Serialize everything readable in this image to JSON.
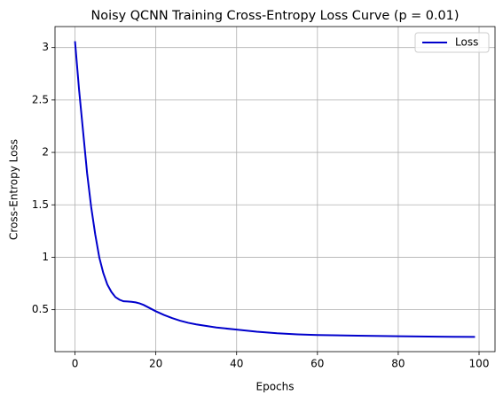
{
  "chart_data": {
    "type": "line",
    "title": "Noisy QCNN Training Cross-Entropy Loss Curve (p = 0.01)",
    "xlabel": "Epochs",
    "ylabel": "Cross-Entropy Loss",
    "x": [
      0,
      1,
      2,
      3,
      4,
      5,
      6,
      7,
      8,
      9,
      10,
      11,
      12,
      13,
      14,
      15,
      16,
      17,
      18,
      19,
      20,
      22,
      24,
      26,
      28,
      30,
      35,
      40,
      45,
      50,
      55,
      60,
      70,
      80,
      90,
      99
    ],
    "series": [
      {
        "name": "Loss",
        "color": "#0000cc",
        "values": [
          3.06,
          2.6,
          2.2,
          1.8,
          1.48,
          1.22,
          1.0,
          0.85,
          0.74,
          0.67,
          0.62,
          0.595,
          0.58,
          0.578,
          0.575,
          0.57,
          0.56,
          0.545,
          0.525,
          0.505,
          0.485,
          0.45,
          0.42,
          0.395,
          0.375,
          0.36,
          0.33,
          0.31,
          0.29,
          0.275,
          0.265,
          0.258,
          0.252,
          0.247,
          0.243,
          0.24
        ]
      }
    ],
    "xlim": [
      -4.95,
      103.95
    ],
    "xticks": [
      0,
      20,
      40,
      60,
      80,
      100
    ],
    "ylim": [
      0.1,
      3.2
    ],
    "yticks": [
      0.5,
      1.0,
      1.5,
      2.0,
      2.5,
      3.0
    ],
    "grid": true,
    "legend": "upper right"
  }
}
